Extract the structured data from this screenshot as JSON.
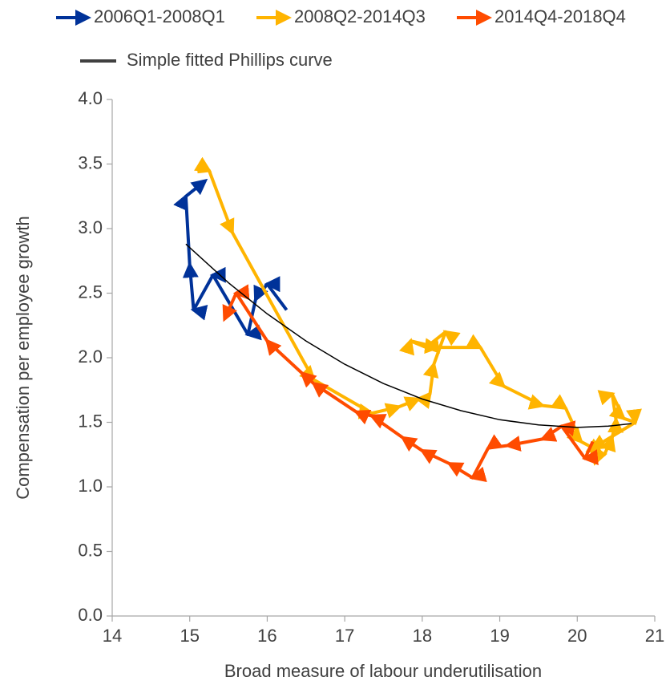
{
  "chart_data": {
    "type": "scatter",
    "x_label": "Broad measure of labour underutilisation",
    "y_label": "Compensation per employee growth",
    "xlim": [
      14,
      21
    ],
    "xticks": [
      14,
      15,
      16,
      17,
      18,
      19,
      20,
      21
    ],
    "ylim": [
      0,
      4
    ],
    "yticks": [
      {
        "value": 0,
        "label": "0.0"
      },
      {
        "value": 0.5,
        "label": "0.5"
      },
      {
        "value": 1,
        "label": "1.0"
      },
      {
        "value": 1.5,
        "label": "1.5"
      },
      {
        "value": 2,
        "label": "2.0"
      },
      {
        "value": 2.5,
        "label": "2.5"
      },
      {
        "value": 3,
        "label": "3.0"
      },
      {
        "value": 3.5,
        "label": "3.5"
      },
      {
        "value": 4,
        "label": "4.0"
      }
    ],
    "grid": false,
    "series": [
      {
        "name": "2006Q1-2008Q1",
        "color": "#003299",
        "style": "arrows",
        "x": [
          16.25,
          16.0,
          15.85,
          15.75,
          15.3,
          15.05,
          15.0,
          14.95,
          15.2
        ],
        "values": [
          2.37,
          2.57,
          2.45,
          2.18,
          2.64,
          2.37,
          2.72,
          3.25,
          3.37
        ]
      },
      {
        "name": "2008Q2-2014Q3",
        "color": "#ffb400",
        "style": "arrows",
        "x": [
          15.1,
          15.25,
          15.55,
          16.6,
          17.35,
          17.7,
          17.95,
          18.1,
          18.15,
          18.3,
          18.05,
          17.85,
          18.2,
          18.75,
          19.05,
          19.55,
          19.85,
          20.05,
          20.3,
          20.35,
          20.45,
          20.5,
          20.45,
          20.6,
          20.75,
          20.2
        ],
        "values": [
          3.44,
          3.45,
          2.97,
          1.83,
          1.57,
          1.62,
          1.68,
          1.72,
          1.95,
          2.2,
          2.08,
          2.13,
          2.08,
          2.08,
          1.78,
          1.63,
          1.61,
          1.35,
          1.27,
          1.25,
          1.38,
          1.52,
          1.72,
          1.53,
          1.5,
          1.3
        ]
      },
      {
        "name": "2014Q4-2018Q4",
        "color": "#ff4b00",
        "style": "arrows",
        "x": [
          20.2,
          20.1,
          19.8,
          19.55,
          19.1,
          18.85,
          18.65,
          18.35,
          18.0,
          17.75,
          17.35,
          17.15,
          16.6,
          16.45,
          16.0,
          15.6,
          15.45
        ],
        "values": [
          1.35,
          1.22,
          1.47,
          1.37,
          1.32,
          1.3,
          1.07,
          1.18,
          1.28,
          1.38,
          1.55,
          1.58,
          1.8,
          1.88,
          2.13,
          2.5,
          2.3
        ]
      },
      {
        "name": "Simple fitted Phillips curve",
        "color": "#000000",
        "style": "line",
        "x": [
          14.95,
          15.5,
          16,
          16.5,
          17,
          17.5,
          18,
          18.5,
          19,
          19.5,
          20,
          20.4,
          20.7
        ],
        "values": [
          2.88,
          2.58,
          2.34,
          2.13,
          1.95,
          1.8,
          1.68,
          1.59,
          1.52,
          1.48,
          1.46,
          1.47,
          1.49
        ]
      }
    ]
  }
}
